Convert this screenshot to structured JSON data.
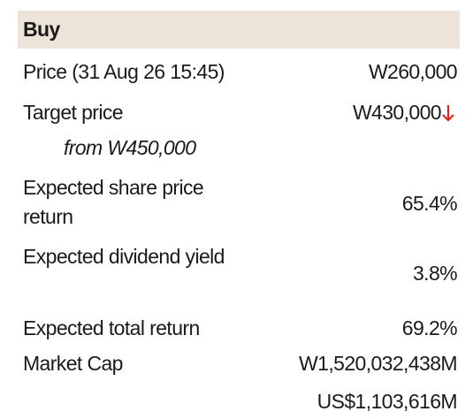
{
  "header": {
    "title": "Buy"
  },
  "rows": [
    {
      "label": "Price (31 Aug 26 15:45)",
      "value": "W260,000"
    },
    {
      "label": "Target price",
      "value": "W430,000",
      "note": "from W450,000"
    },
    {
      "label": "Expected share price return",
      "value": "65.4%"
    },
    {
      "label": "Expected dividend yield",
      "value": "3.8%"
    },
    {
      "label": "Expected total return",
      "value": "69.2%"
    },
    {
      "label": "Market Cap",
      "values": [
        "W1,520,032,438M",
        "US$1,103,616M"
      ]
    }
  ]
}
